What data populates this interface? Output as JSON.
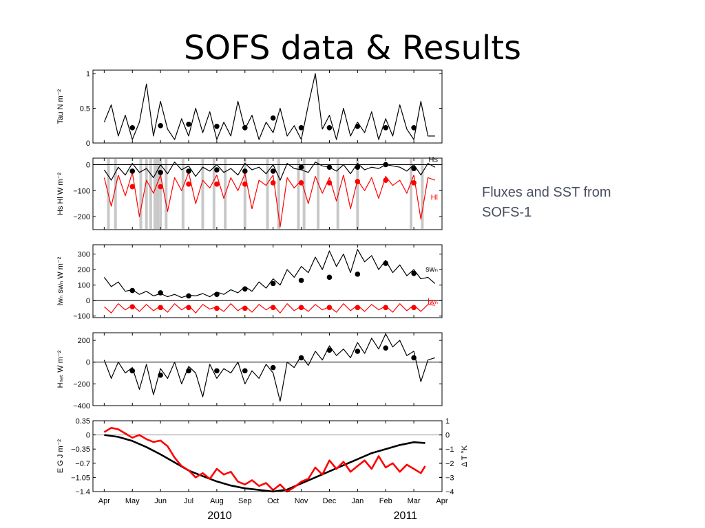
{
  "slide": {
    "title": "SOFS data & Results",
    "caption_line1": "Fluxes and SST from",
    "caption_line2": "SOFS-1"
  },
  "colors": {
    "black": "#000000",
    "red": "#ff0000",
    "gray": "#c8c8c8",
    "text": "#4a4f63"
  },
  "chart_data": [
    {
      "type": "line",
      "ylabel": "Tau N m⁻²",
      "ylim": [
        0,
        1.05
      ],
      "yticks": [
        0,
        0.5,
        1
      ],
      "ytick_labels": [
        "0",
        "0.5",
        "1"
      ],
      "series": [
        {
          "color": "#000000",
          "x": [
            0,
            0.25,
            0.5,
            0.75,
            1,
            1.25,
            1.5,
            1.75,
            2,
            2.25,
            2.5,
            2.75,
            3,
            3.25,
            3.5,
            3.75,
            4,
            4.25,
            4.5,
            4.75,
            5,
            5.25,
            5.5,
            5.75,
            6,
            6.25,
            6.5,
            6.75,
            7,
            7.25,
            7.5,
            7.75,
            8,
            8.25,
            8.5,
            8.75,
            9,
            9.25,
            9.5,
            9.75,
            10,
            10.25,
            10.5,
            10.75,
            11,
            11.25,
            11.5,
            11.75
          ],
          "y": [
            0.3,
            0.55,
            0.1,
            0.4,
            0.05,
            0.3,
            0.85,
            0.1,
            0.6,
            0.2,
            0.05,
            0.35,
            0.1,
            0.5,
            0.15,
            0.45,
            0.05,
            0.3,
            0.1,
            0.6,
            0.2,
            0.4,
            0.05,
            0.3,
            0.15,
            0.5,
            0.1,
            0.25,
            0.05,
            0.55,
            1.0,
            0.2,
            0.4,
            0.05,
            0.5,
            0.1,
            0.3,
            0.15,
            0.45,
            0.05,
            0.35,
            0.1,
            0.55,
            0.2,
            0.05,
            0.6,
            0.1,
            0.1
          ]
        },
        {
          "color": "#000000",
          "marker": "dot",
          "line": false,
          "x": [
            1,
            2,
            3,
            4,
            5,
            6,
            7,
            8,
            9,
            10,
            11
          ],
          "y": [
            0.22,
            0.25,
            0.27,
            0.24,
            0.22,
            0.36,
            0.22,
            0.22,
            0.24,
            0.22,
            0.22
          ]
        }
      ]
    },
    {
      "type": "line",
      "ylabel": "Hs Hl W m⁻²",
      "ylim": [
        -250,
        25
      ],
      "yticks": [
        -200,
        -100,
        0
      ],
      "ytick_labels": [
        "−200",
        "−100",
        "0"
      ],
      "zero_line": true,
      "labels": [
        {
          "text": "Hs",
          "color": "#000000",
          "x": 11.75,
          "y": 0
        },
        {
          "text": "Hl",
          "color": "#ff0000",
          "x": 11.75,
          "y": -145
        }
      ],
      "shading_x": [
        0.15,
        0.4,
        1.3,
        1.5,
        1.65,
        1.8,
        1.9,
        2.0,
        2.2,
        2.8,
        3.5,
        3.9,
        4.3,
        5.0,
        5.8,
        6.2,
        6.9,
        7.1,
        7.6,
        8.3,
        9.0,
        10.9,
        11.3
      ],
      "series": [
        {
          "color": "#ff0000",
          "x": [
            0,
            0.25,
            0.5,
            0.75,
            1,
            1.25,
            1.5,
            1.75,
            2,
            2.25,
            2.5,
            2.75,
            3,
            3.25,
            3.5,
            3.75,
            4,
            4.25,
            4.5,
            4.75,
            5,
            5.25,
            5.5,
            5.75,
            6,
            6.25,
            6.5,
            6.75,
            7,
            7.25,
            7.5,
            7.75,
            8,
            8.25,
            8.5,
            8.75,
            9,
            9.25,
            9.5,
            9.75,
            10,
            10.25,
            10.5,
            10.75,
            11,
            11.25,
            11.5,
            11.75
          ],
          "y": [
            -50,
            -160,
            -40,
            -120,
            -30,
            -200,
            -60,
            -110,
            -40,
            -180,
            -50,
            -100,
            -30,
            -150,
            -60,
            -90,
            -40,
            -130,
            -50,
            -100,
            -35,
            -170,
            -60,
            -80,
            -40,
            -240,
            -50,
            -90,
            -60,
            -150,
            -45,
            -110,
            -50,
            -140,
            -40,
            -170,
            -60,
            -100,
            -50,
            -130,
            -45,
            -80,
            -60,
            -110,
            -40,
            -210,
            -50,
            -60
          ]
        },
        {
          "color": "#000000",
          "x": [
            0,
            0.25,
            0.5,
            0.75,
            1,
            1.25,
            1.5,
            1.75,
            2,
            2.25,
            2.5,
            2.75,
            3,
            3.25,
            3.5,
            3.75,
            4,
            4.25,
            4.5,
            4.75,
            5,
            5.25,
            5.5,
            5.75,
            6,
            6.25,
            6.5,
            6.75,
            7,
            7.25,
            7.5,
            7.75,
            8,
            8.25,
            8.5,
            8.75,
            9,
            9.25,
            9.5,
            9.75,
            10,
            10.25,
            10.5,
            10.75,
            11,
            11.25,
            11.5,
            11.75
          ],
          "y": [
            -20,
            -60,
            -10,
            -40,
            5,
            -30,
            -15,
            -50,
            0,
            -35,
            10,
            -20,
            -5,
            -45,
            -10,
            -25,
            0,
            -30,
            -15,
            -40,
            5,
            -20,
            -10,
            -35,
            0,
            -60,
            5,
            -15,
            -20,
            -30,
            10,
            -5,
            -10,
            -25,
            0,
            -35,
            5,
            -20,
            -10,
            -15,
            0,
            -5,
            -10,
            -25,
            0,
            -40,
            5,
            -10
          ]
        },
        {
          "color": "#ff0000",
          "marker": "dot",
          "line": false,
          "x": [
            1,
            2,
            3,
            4,
            5,
            6,
            7,
            8,
            9,
            10,
            11
          ],
          "y": [
            -85,
            -85,
            -75,
            -75,
            -75,
            -70,
            -70,
            -70,
            -65,
            -60,
            -70
          ]
        },
        {
          "color": "#000000",
          "marker": "dot",
          "line": false,
          "x": [
            1,
            2,
            3,
            4,
            5,
            6,
            7,
            8,
            9,
            10,
            11
          ],
          "y": [
            -25,
            -30,
            -25,
            -20,
            -25,
            -25,
            -10,
            -10,
            -10,
            0,
            -15
          ]
        }
      ]
    },
    {
      "type": "line",
      "ylabel": "lwₙ swₙ W m⁻²",
      "ylim": [
        -110,
        360
      ],
      "yticks": [
        -100,
        0,
        100,
        200,
        300
      ],
      "ytick_labels": [
        "−100",
        "0",
        "100",
        "200",
        "300"
      ],
      "zero_line": true,
      "labels": [
        {
          "text": "swₙ",
          "color": "#000000",
          "x": 11.75,
          "y": 170
        },
        {
          "text": "lwₙ",
          "color": "#ff0000",
          "x": 11.75,
          "y": -40
        }
      ],
      "series": [
        {
          "color": "#000000",
          "x": [
            0,
            0.25,
            0.5,
            0.75,
            1,
            1.25,
            1.5,
            1.75,
            2,
            2.25,
            2.5,
            2.75,
            3,
            3.25,
            3.5,
            3.75,
            4,
            4.25,
            4.5,
            4.75,
            5,
            5.25,
            5.5,
            5.75,
            6,
            6.25,
            6.5,
            6.75,
            7,
            7.25,
            7.5,
            7.75,
            8,
            8.25,
            8.5,
            8.75,
            9,
            9.25,
            9.5,
            9.75,
            10,
            10.25,
            10.5,
            10.75,
            11,
            11.25,
            11.5,
            11.75
          ],
          "y": [
            150,
            90,
            120,
            60,
            70,
            40,
            60,
            30,
            45,
            25,
            40,
            20,
            35,
            30,
            45,
            25,
            55,
            40,
            70,
            50,
            90,
            60,
            120,
            80,
            140,
            100,
            200,
            150,
            220,
            180,
            280,
            200,
            320,
            220,
            300,
            180,
            330,
            250,
            290,
            200,
            260,
            180,
            230,
            160,
            200,
            140,
            150,
            110
          ]
        },
        {
          "color": "#ff0000",
          "x": [
            0,
            0.25,
            0.5,
            0.75,
            1,
            1.25,
            1.5,
            1.75,
            2,
            2.25,
            2.5,
            2.75,
            3,
            3.25,
            3.5,
            3.75,
            4,
            4.25,
            4.5,
            4.75,
            5,
            5.25,
            5.5,
            5.75,
            6,
            6.25,
            6.5,
            6.75,
            7,
            7.25,
            7.5,
            7.75,
            8,
            8.25,
            8.5,
            8.75,
            9,
            9.25,
            9.5,
            9.75,
            10,
            10.25,
            10.5,
            10.75,
            11,
            11.25,
            11.5,
            11.75
          ],
          "y": [
            -40,
            -80,
            -20,
            -60,
            -30,
            -70,
            -25,
            -65,
            -35,
            -75,
            -20,
            -60,
            -30,
            -80,
            -25,
            -55,
            -40,
            -70,
            -20,
            -65,
            -35,
            -75,
            -25,
            -60,
            -30,
            -80,
            -20,
            -65,
            -35,
            -70,
            -25,
            -60,
            -40,
            -75,
            -20,
            -65,
            -30,
            -70,
            -25,
            -60,
            -35,
            -75,
            -20,
            -65,
            -30,
            -70,
            -25,
            -30
          ]
        },
        {
          "color": "#000000",
          "marker": "dot",
          "line": false,
          "x": [
            1,
            2,
            3,
            4,
            5,
            6,
            7,
            8,
            9,
            10,
            11
          ],
          "y": [
            65,
            50,
            30,
            40,
            75,
            110,
            130,
            150,
            170,
            240,
            175
          ]
        },
        {
          "color": "#ff0000",
          "marker": "dot",
          "line": false,
          "x": [
            1,
            2,
            3,
            4,
            5,
            6,
            7,
            8,
            9,
            10,
            11
          ],
          "y": [
            -40,
            -45,
            -45,
            -50,
            -50,
            -45,
            -45,
            -45,
            -45,
            -45,
            -45
          ]
        }
      ]
    },
    {
      "type": "line",
      "ylabel": "Hₙₑₜ W m⁻²",
      "ylim": [
        -400,
        270
      ],
      "yticks": [
        -400,
        -200,
        0,
        200
      ],
      "ytick_labels": [
        "−400",
        "−200",
        "0",
        "200"
      ],
      "zero_line": true,
      "series": [
        {
          "color": "#000000",
          "x": [
            0,
            0.25,
            0.5,
            0.75,
            1,
            1.25,
            1.5,
            1.75,
            2,
            2.25,
            2.5,
            2.75,
            3,
            3.25,
            3.5,
            3.75,
            4,
            4.25,
            4.5,
            4.75,
            5,
            5.25,
            5.5,
            5.75,
            6,
            6.25,
            6.5,
            6.75,
            7,
            7.25,
            7.5,
            7.75,
            8,
            8.25,
            8.5,
            8.75,
            9,
            9.25,
            9.5,
            9.75,
            10,
            10.25,
            10.5,
            10.75,
            11,
            11.25,
            11.5,
            11.75
          ],
          "y": [
            20,
            -150,
            0,
            -100,
            -50,
            -250,
            -20,
            -300,
            -60,
            -150,
            0,
            -200,
            -40,
            -100,
            -320,
            -20,
            -150,
            -60,
            -100,
            0,
            -200,
            -80,
            -150,
            -20,
            -100,
            -360,
            0,
            -50,
            60,
            -30,
            100,
            20,
            150,
            60,
            120,
            40,
            180,
            80,
            220,
            120,
            260,
            140,
            200,
            60,
            100,
            -180,
            20,
            40
          ]
        },
        {
          "color": "#000000",
          "marker": "dot",
          "line": false,
          "x": [
            1,
            2,
            3,
            4,
            5,
            6,
            7,
            8,
            9,
            10,
            11
          ],
          "y": [
            -80,
            -120,
            -80,
            -80,
            -80,
            -50,
            40,
            110,
            100,
            130,
            40
          ]
        }
      ]
    },
    {
      "type": "line",
      "ylabel": "E  G J m⁻²",
      "ylabel_right": "Δ T °K",
      "ylim": [
        -1.4,
        0.35
      ],
      "yticks": [
        -1.4,
        -1.05,
        -0.7,
        -0.35,
        0,
        0.35
      ],
      "ytick_labels": [
        "−1.4",
        "−1.05",
        "−0.7",
        "−0.35",
        "0",
        "0.35"
      ],
      "ylim_right": [
        -4,
        1
      ],
      "yticks_right": [
        -4,
        -3,
        -2,
        -1,
        0,
        1
      ],
      "ytick_labels_right": [
        "−4",
        "−3",
        "−2",
        "−1",
        "0",
        "1"
      ],
      "zero_line": true,
      "xticks": [
        0,
        1,
        2,
        3,
        4,
        5,
        6,
        7,
        8,
        9,
        10,
        11,
        12
      ],
      "xtick_labels": [
        "Apr",
        "May",
        "Jun",
        "Jul",
        "Aug",
        "Sep",
        "Oct",
        "Nov",
        "Dec",
        "Jan",
        "Feb",
        "Mar",
        "Apr"
      ],
      "year_labels": [
        {
          "text": "2010",
          "x": 4.1
        },
        {
          "text": "2011",
          "x": 10.7
        }
      ],
      "series": [
        {
          "color": "#000000",
          "axis": "left",
          "x": [
            0,
            0.5,
            1,
            1.5,
            2,
            2.5,
            3,
            3.5,
            4,
            4.5,
            5,
            5.5,
            6,
            6.5,
            7,
            7.5,
            8,
            8.5,
            9,
            9.5,
            10,
            10.5,
            11,
            11.4
          ],
          "y": [
            0,
            -0.05,
            -0.15,
            -0.3,
            -0.48,
            -0.68,
            -0.88,
            -1.02,
            -1.15,
            -1.25,
            -1.32,
            -1.36,
            -1.4,
            -1.35,
            -1.2,
            -1.05,
            -0.9,
            -0.75,
            -0.6,
            -0.45,
            -0.35,
            -0.25,
            -0.18,
            -0.2
          ]
        },
        {
          "color": "#ff0000",
          "axis": "right",
          "x": [
            0,
            0.25,
            0.5,
            0.75,
            1,
            1.25,
            1.5,
            1.75,
            2,
            2.25,
            2.5,
            2.75,
            3,
            3.25,
            3.5,
            3.75,
            4,
            4.25,
            4.5,
            4.75,
            5,
            5.25,
            5.5,
            5.75,
            6,
            6.25,
            6.5,
            6.75,
            7,
            7.25,
            7.5,
            7.75,
            8,
            8.25,
            8.5,
            8.75,
            9,
            9.25,
            9.5,
            9.75,
            10,
            10.25,
            10.5,
            10.75,
            11,
            11.25,
            11.4
          ],
          "y": [
            0.2,
            0.5,
            0.4,
            0.1,
            -0.2,
            0.0,
            -0.3,
            -0.5,
            -0.4,
            -0.8,
            -1.6,
            -2.2,
            -2.5,
            -3.0,
            -2.7,
            -3.1,
            -2.4,
            -2.8,
            -2.6,
            -3.3,
            -3.5,
            -3.2,
            -3.6,
            -3.4,
            -3.9,
            -3.5,
            -4.0,
            -3.7,
            -3.3,
            -3.1,
            -2.3,
            -2.8,
            -1.8,
            -2.4,
            -1.9,
            -2.6,
            -2.2,
            -1.8,
            -2.4,
            -1.5,
            -2.3,
            -2.0,
            -2.6,
            -2.1,
            -2.4,
            -2.7,
            -2.2
          ]
        }
      ]
    }
  ]
}
